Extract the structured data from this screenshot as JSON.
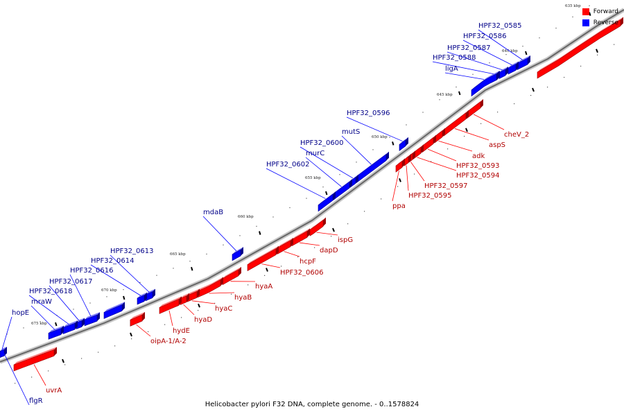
{
  "caption": "Helicobacter pylori F32 DNA, complete genome. - 0..1578824",
  "legend": [
    {
      "label": "Forward",
      "color": "#ff0000"
    },
    {
      "label": "Reverse",
      "color": "#0000ff"
    }
  ],
  "colors": {
    "forward": "#ff0000",
    "reverse": "#0000ff",
    "forward_label": "#b00000",
    "reverse_label": "#000088",
    "backbone": "#666666"
  },
  "ticks": [
    {
      "label": "635 kbp"
    },
    {
      "label": "640 kbp"
    },
    {
      "label": "645 kbp"
    },
    {
      "label": "650 kbp"
    },
    {
      "label": "655 kbp"
    },
    {
      "label": "660 kbp"
    },
    {
      "label": "665 kbp"
    },
    {
      "label": "670 kbp"
    },
    {
      "label": "675 kbp"
    }
  ],
  "genes": [
    {
      "name": "HPF32_0585",
      "strand": "reverse"
    },
    {
      "name": "HPF32_0586",
      "strand": "reverse"
    },
    {
      "name": "HPF32_0587",
      "strand": "reverse"
    },
    {
      "name": "HPF32_0588",
      "strand": "reverse"
    },
    {
      "name": "ligA",
      "strand": "reverse"
    },
    {
      "name": "HPF32_0596",
      "strand": "reverse"
    },
    {
      "name": "mutS",
      "strand": "reverse"
    },
    {
      "name": "HPF32_0600",
      "strand": "reverse"
    },
    {
      "name": "murC",
      "strand": "reverse"
    },
    {
      "name": "HPF32_0602",
      "strand": "reverse"
    },
    {
      "name": "mdaB",
      "strand": "reverse"
    },
    {
      "name": "HPF32_0613",
      "strand": "reverse"
    },
    {
      "name": "HPF32_0614",
      "strand": "reverse"
    },
    {
      "name": "HPF32_0616",
      "strand": "reverse"
    },
    {
      "name": "HPF32_0617",
      "strand": "reverse"
    },
    {
      "name": "HPF32_0618",
      "strand": "reverse"
    },
    {
      "name": "mraW",
      "strand": "reverse"
    },
    {
      "name": "hopE",
      "strand": "reverse"
    },
    {
      "name": "flgR",
      "strand": "reverse"
    },
    {
      "name": "cheV_2",
      "strand": "forward"
    },
    {
      "name": "aspS",
      "strand": "forward"
    },
    {
      "name": "adk",
      "strand": "forward"
    },
    {
      "name": "HPF32_0593",
      "strand": "forward"
    },
    {
      "name": "HPF32_0594",
      "strand": "forward"
    },
    {
      "name": "HPF32_0597",
      "strand": "forward"
    },
    {
      "name": "HPF32_0595",
      "strand": "forward"
    },
    {
      "name": "ppa",
      "strand": "forward"
    },
    {
      "name": "ispG",
      "strand": "forward"
    },
    {
      "name": "dapD",
      "strand": "forward"
    },
    {
      "name": "hcpF",
      "strand": "forward"
    },
    {
      "name": "HPF32_0606",
      "strand": "forward"
    },
    {
      "name": "hyaA",
      "strand": "forward"
    },
    {
      "name": "hyaB",
      "strand": "forward"
    },
    {
      "name": "hyaC",
      "strand": "forward"
    },
    {
      "name": "hyaD",
      "strand": "forward"
    },
    {
      "name": "hydE",
      "strand": "forward"
    },
    {
      "name": "oipA-1/A-2",
      "strand": "forward"
    },
    {
      "name": "uvrA",
      "strand": "forward"
    }
  ]
}
